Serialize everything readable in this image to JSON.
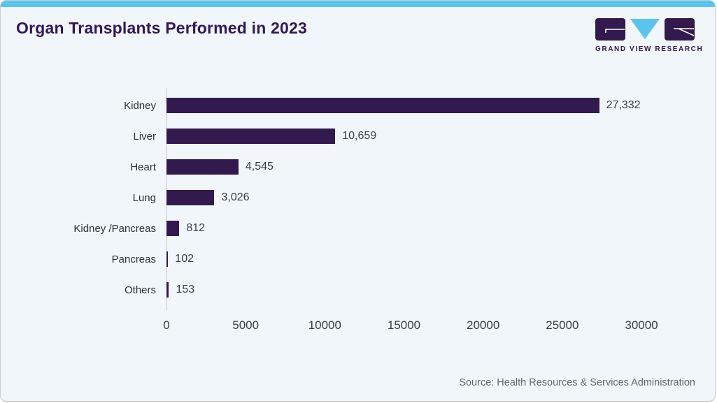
{
  "header": {
    "title": "Organ Transplants Performed in 2023",
    "logo_text": "GRAND VIEW RESEARCH"
  },
  "colors": {
    "accent_cyan": "#58c5ee",
    "logo_triangle_cyan": "#5bc4ec",
    "bar_purple": "#331a4e",
    "title_purple": "#32175a",
    "card_bg": "#f0f6f9"
  },
  "chart_data": {
    "type": "bar",
    "orientation": "horizontal",
    "title": "Organ Transplants Performed in 2023",
    "categories": [
      "Kidney",
      "Liver",
      "Heart",
      "Lung",
      "Kidney /Pancreas",
      "Pancreas",
      "Others"
    ],
    "values": [
      27332,
      10659,
      4545,
      3026,
      812,
      102,
      153
    ],
    "value_labels": [
      "27,332",
      "10,659",
      "4,545",
      "3,026",
      "812",
      "102",
      "153"
    ],
    "xlabel": "",
    "ylabel": "",
    "xlim": [
      0,
      30000
    ],
    "x_ticks": [
      0,
      5000,
      10000,
      15000,
      20000,
      25000,
      30000
    ],
    "x_tick_labels": [
      "0",
      "5000",
      "10000",
      "15000",
      "20000",
      "25000",
      "30000"
    ],
    "grid": false,
    "legend": false
  },
  "footer": {
    "source": "Source: Health Resources & Services Administration"
  }
}
